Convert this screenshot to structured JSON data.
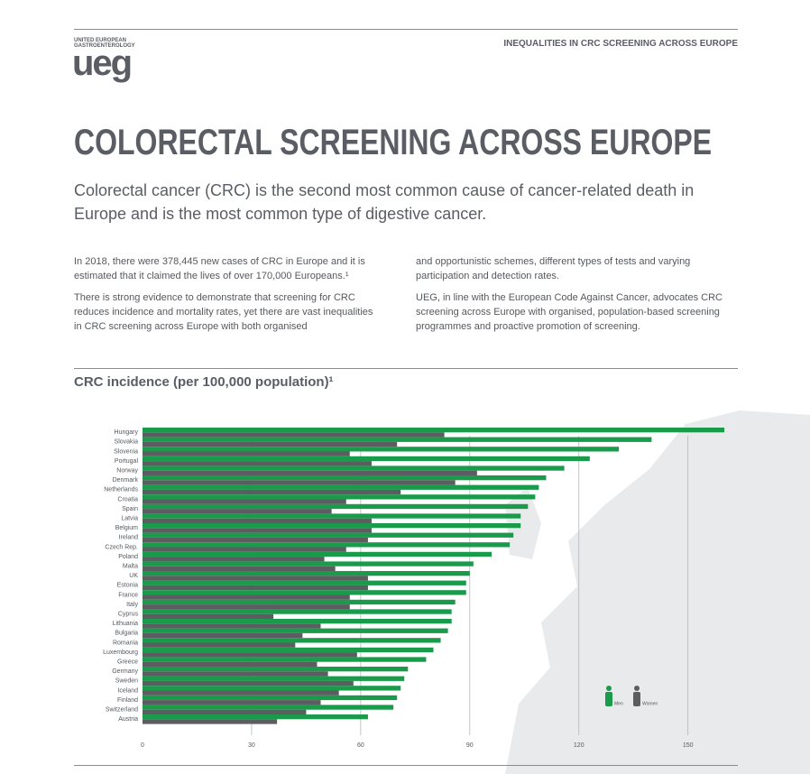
{
  "header": {
    "logo_line1": "UNITED EUROPEAN",
    "logo_line2": "GASTROENTEROLOGY",
    "logo": "ueg",
    "section": "INEQUALITIES IN CRC SCREENING ACROSS EUROPE"
  },
  "title": "COLORECTAL SCREENING ACROSS EUROPE",
  "lead": "Colorectal cancer (CRC) is the second most common cause of cancer-related death in Europe and is the most common type of digestive cancer.",
  "paragraphs": [
    "In 2018, there were 378,445 new cases of CRC in Europe and it is estimated that it claimed the lives of over 170,000 Europeans.¹",
    "There is strong evidence to demonstrate that screening for CRC reduces incidence and mortality rates, yet there are vast inequalities in CRC screening across Europe with both organised",
    "and opportunistic schemes, different types of tests and varying participation and detection rates.",
    "UEG, in line with the European Code Against Cancer, advocates CRC screening across Europe with organised, population-based screening programmes and proactive promotion of screening."
  ],
  "chart_data": {
    "type": "bar",
    "orientation": "horizontal",
    "title": "CRC incidence (per 100,000 population)¹",
    "categories": [
      "Hungary",
      "Slovakia",
      "Slovenia",
      "Portugal",
      "Norway",
      "Denmark",
      "Netherlands",
      "Croatia",
      "Spain",
      "Latvia",
      "Belgium",
      "Ireland",
      "Czech Rep.",
      "Poland",
      "Malta",
      "UK",
      "Estonia",
      "France",
      "Italy",
      "Cyprus",
      "Lithuania",
      "Bulgaria",
      "Romania",
      "Luxembourg",
      "Greece",
      "Germany",
      "Sweden",
      "Iceland",
      "Finland",
      "Switzerland",
      "Austria"
    ],
    "series": [
      {
        "name": "Men",
        "color": "#1a9b4b",
        "values": [
          160,
          140,
          131,
          123,
          116,
          111,
          109,
          108,
          106,
          104,
          104,
          102,
          101,
          96,
          91,
          90,
          89,
          89,
          86,
          85,
          85,
          84,
          82,
          80,
          78,
          73,
          72,
          71,
          70,
          69,
          62
        ]
      },
      {
        "name": "Women",
        "color": "#5b5d60",
        "values": [
          83,
          70,
          57,
          63,
          92,
          86,
          71,
          56,
          52,
          63,
          63,
          62,
          56,
          50,
          53,
          62,
          62,
          57,
          57,
          36,
          49,
          44,
          42,
          59,
          48,
          51,
          58,
          54,
          49,
          45,
          37
        ]
      }
    ],
    "xlim": [
      0,
      160
    ],
    "xticks": [
      0,
      30,
      60,
      90,
      120,
      150
    ],
    "grid": true
  }
}
